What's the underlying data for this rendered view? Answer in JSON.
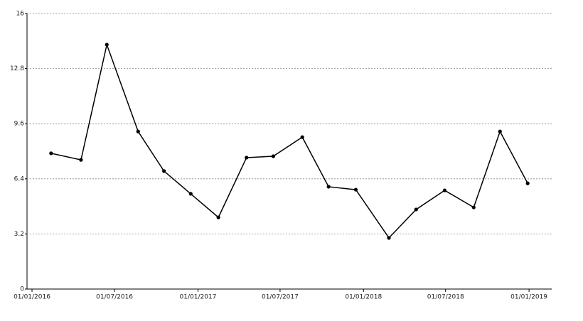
{
  "chart_data": {
    "type": "line",
    "x": [
      "2016-02-12",
      "2016-04-18",
      "2016-06-14",
      "2016-08-22",
      "2016-10-18",
      "2016-12-16",
      "2017-02-15",
      "2017-04-18",
      "2017-06-16",
      "2017-08-19",
      "2017-10-16",
      "2017-12-15",
      "2018-02-26",
      "2018-04-27",
      "2018-06-29",
      "2018-09-01",
      "2018-10-29",
      "2018-12-29"
    ],
    "series": [
      {
        "color": "#000000",
        "values": [
          7.88,
          7.5,
          14.19,
          9.15,
          6.85,
          5.53,
          4.16,
          7.63,
          7.71,
          8.82,
          5.94,
          5.77,
          2.97,
          4.62,
          5.73,
          4.74,
          9.15,
          6.14
        ]
      }
    ],
    "xlim": [
      "2015-12-21",
      "2019-02-20"
    ],
    "xticks": [
      {
        "value": "2016-01-01",
        "label": "01/01/2016"
      },
      {
        "value": "2016-07-01",
        "label": "01/07/2016"
      },
      {
        "value": "2017-01-01",
        "label": "01/01/2017"
      },
      {
        "value": "2017-07-01",
        "label": "01/07/2017"
      },
      {
        "value": "2018-01-01",
        "label": "01/01/2018"
      },
      {
        "value": "2018-07-01",
        "label": "01/07/2018"
      },
      {
        "value": "2019-01-01",
        "label": "01/01/2019"
      }
    ],
    "ylim": [
      0,
      16
    ],
    "yticks": [
      0,
      3.2,
      6.4,
      9.6,
      12.8,
      16
    ],
    "grid": true
  }
}
